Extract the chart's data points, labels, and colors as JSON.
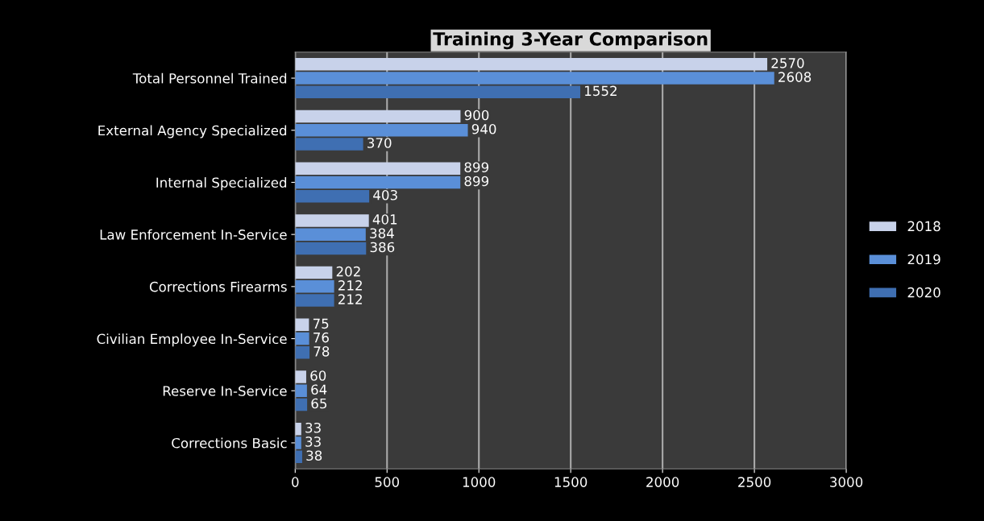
{
  "chart_data": {
    "type": "bar",
    "orientation": "horizontal",
    "title": "Training 3-Year Comparison",
    "categories": [
      "Total Personnel Trained",
      "External Agency Specialized",
      "Internal Specialized",
      "Law Enforcement In-Service",
      "Corrections Firearms",
      "Civilian Employee In-Service",
      "Reserve In-Service",
      "Corrections Basic"
    ],
    "series": [
      {
        "name": "2018",
        "color": "#c8d2ea",
        "values": [
          2570,
          900,
          899,
          401,
          202,
          75,
          60,
          33
        ]
      },
      {
        "name": "2019",
        "color": "#5a8fd8",
        "values": [
          2608,
          940,
          899,
          384,
          212,
          76,
          64,
          33
        ]
      },
      {
        "name": "2020",
        "color": "#3f6fb2",
        "values": [
          1552,
          370,
          403,
          386,
          212,
          78,
          65,
          38
        ]
      }
    ],
    "xlim": [
      0,
      3000
    ],
    "xticks": [
      0,
      500,
      1000,
      1500,
      2000,
      2500,
      3000
    ],
    "grid": "x",
    "legend": "right",
    "data_labels": true
  }
}
